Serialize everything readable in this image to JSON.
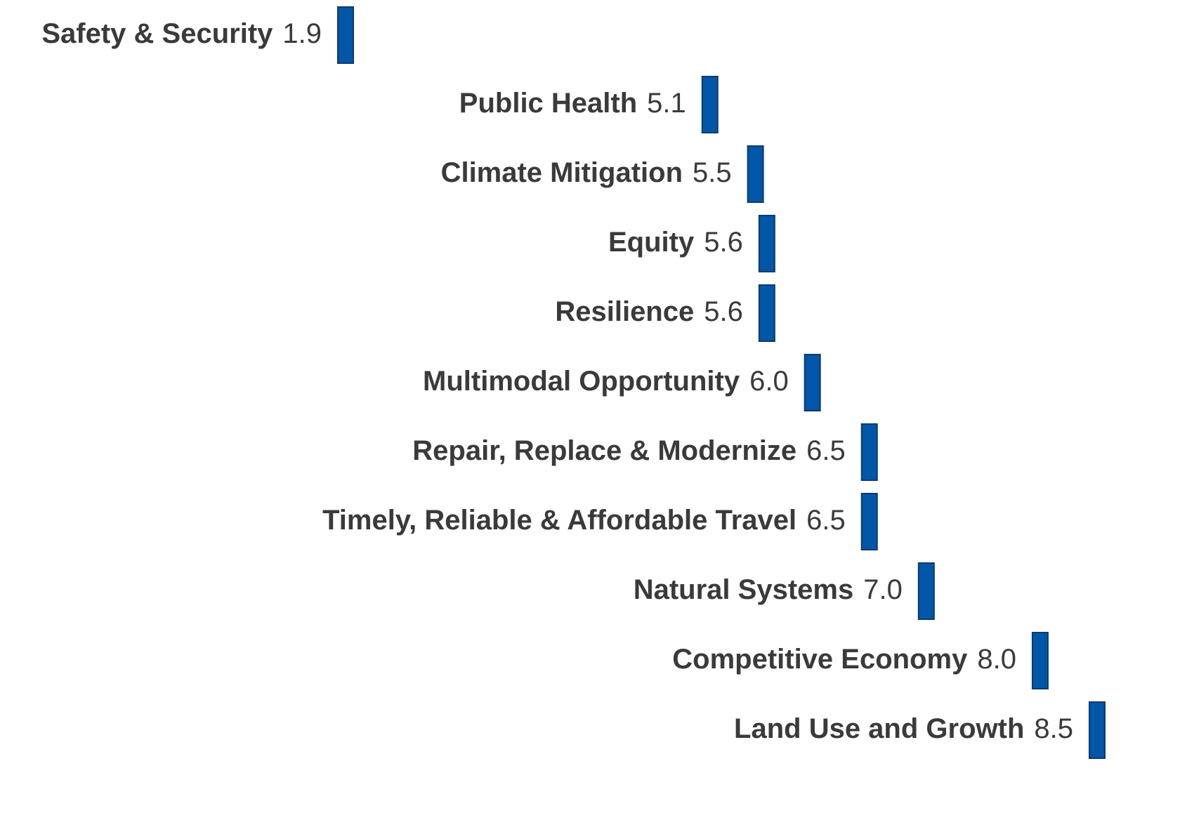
{
  "chart_data": {
    "type": "bar",
    "categories": [
      "Safety & Security",
      "Public Health",
      "Climate Mitigation",
      "Equity",
      "Resilience",
      "Multimodal Opportunity",
      "Repair, Replace & Modernize",
      "Timely, Reliable & Affordable Travel",
      "Natural Systems",
      "Competitive Economy",
      "Land Use and Growth"
    ],
    "values": [
      1.9,
      5.1,
      5.5,
      5.6,
      5.6,
      6.0,
      6.5,
      6.5,
      7.0,
      8.0,
      8.5
    ],
    "value_labels": [
      "1.9",
      "5.1",
      "5.5",
      "5.6",
      "5.6",
      "6.0",
      "6.5",
      "6.5",
      "7.0",
      "8.0",
      "8.5"
    ],
    "color": "#0057a8"
  }
}
